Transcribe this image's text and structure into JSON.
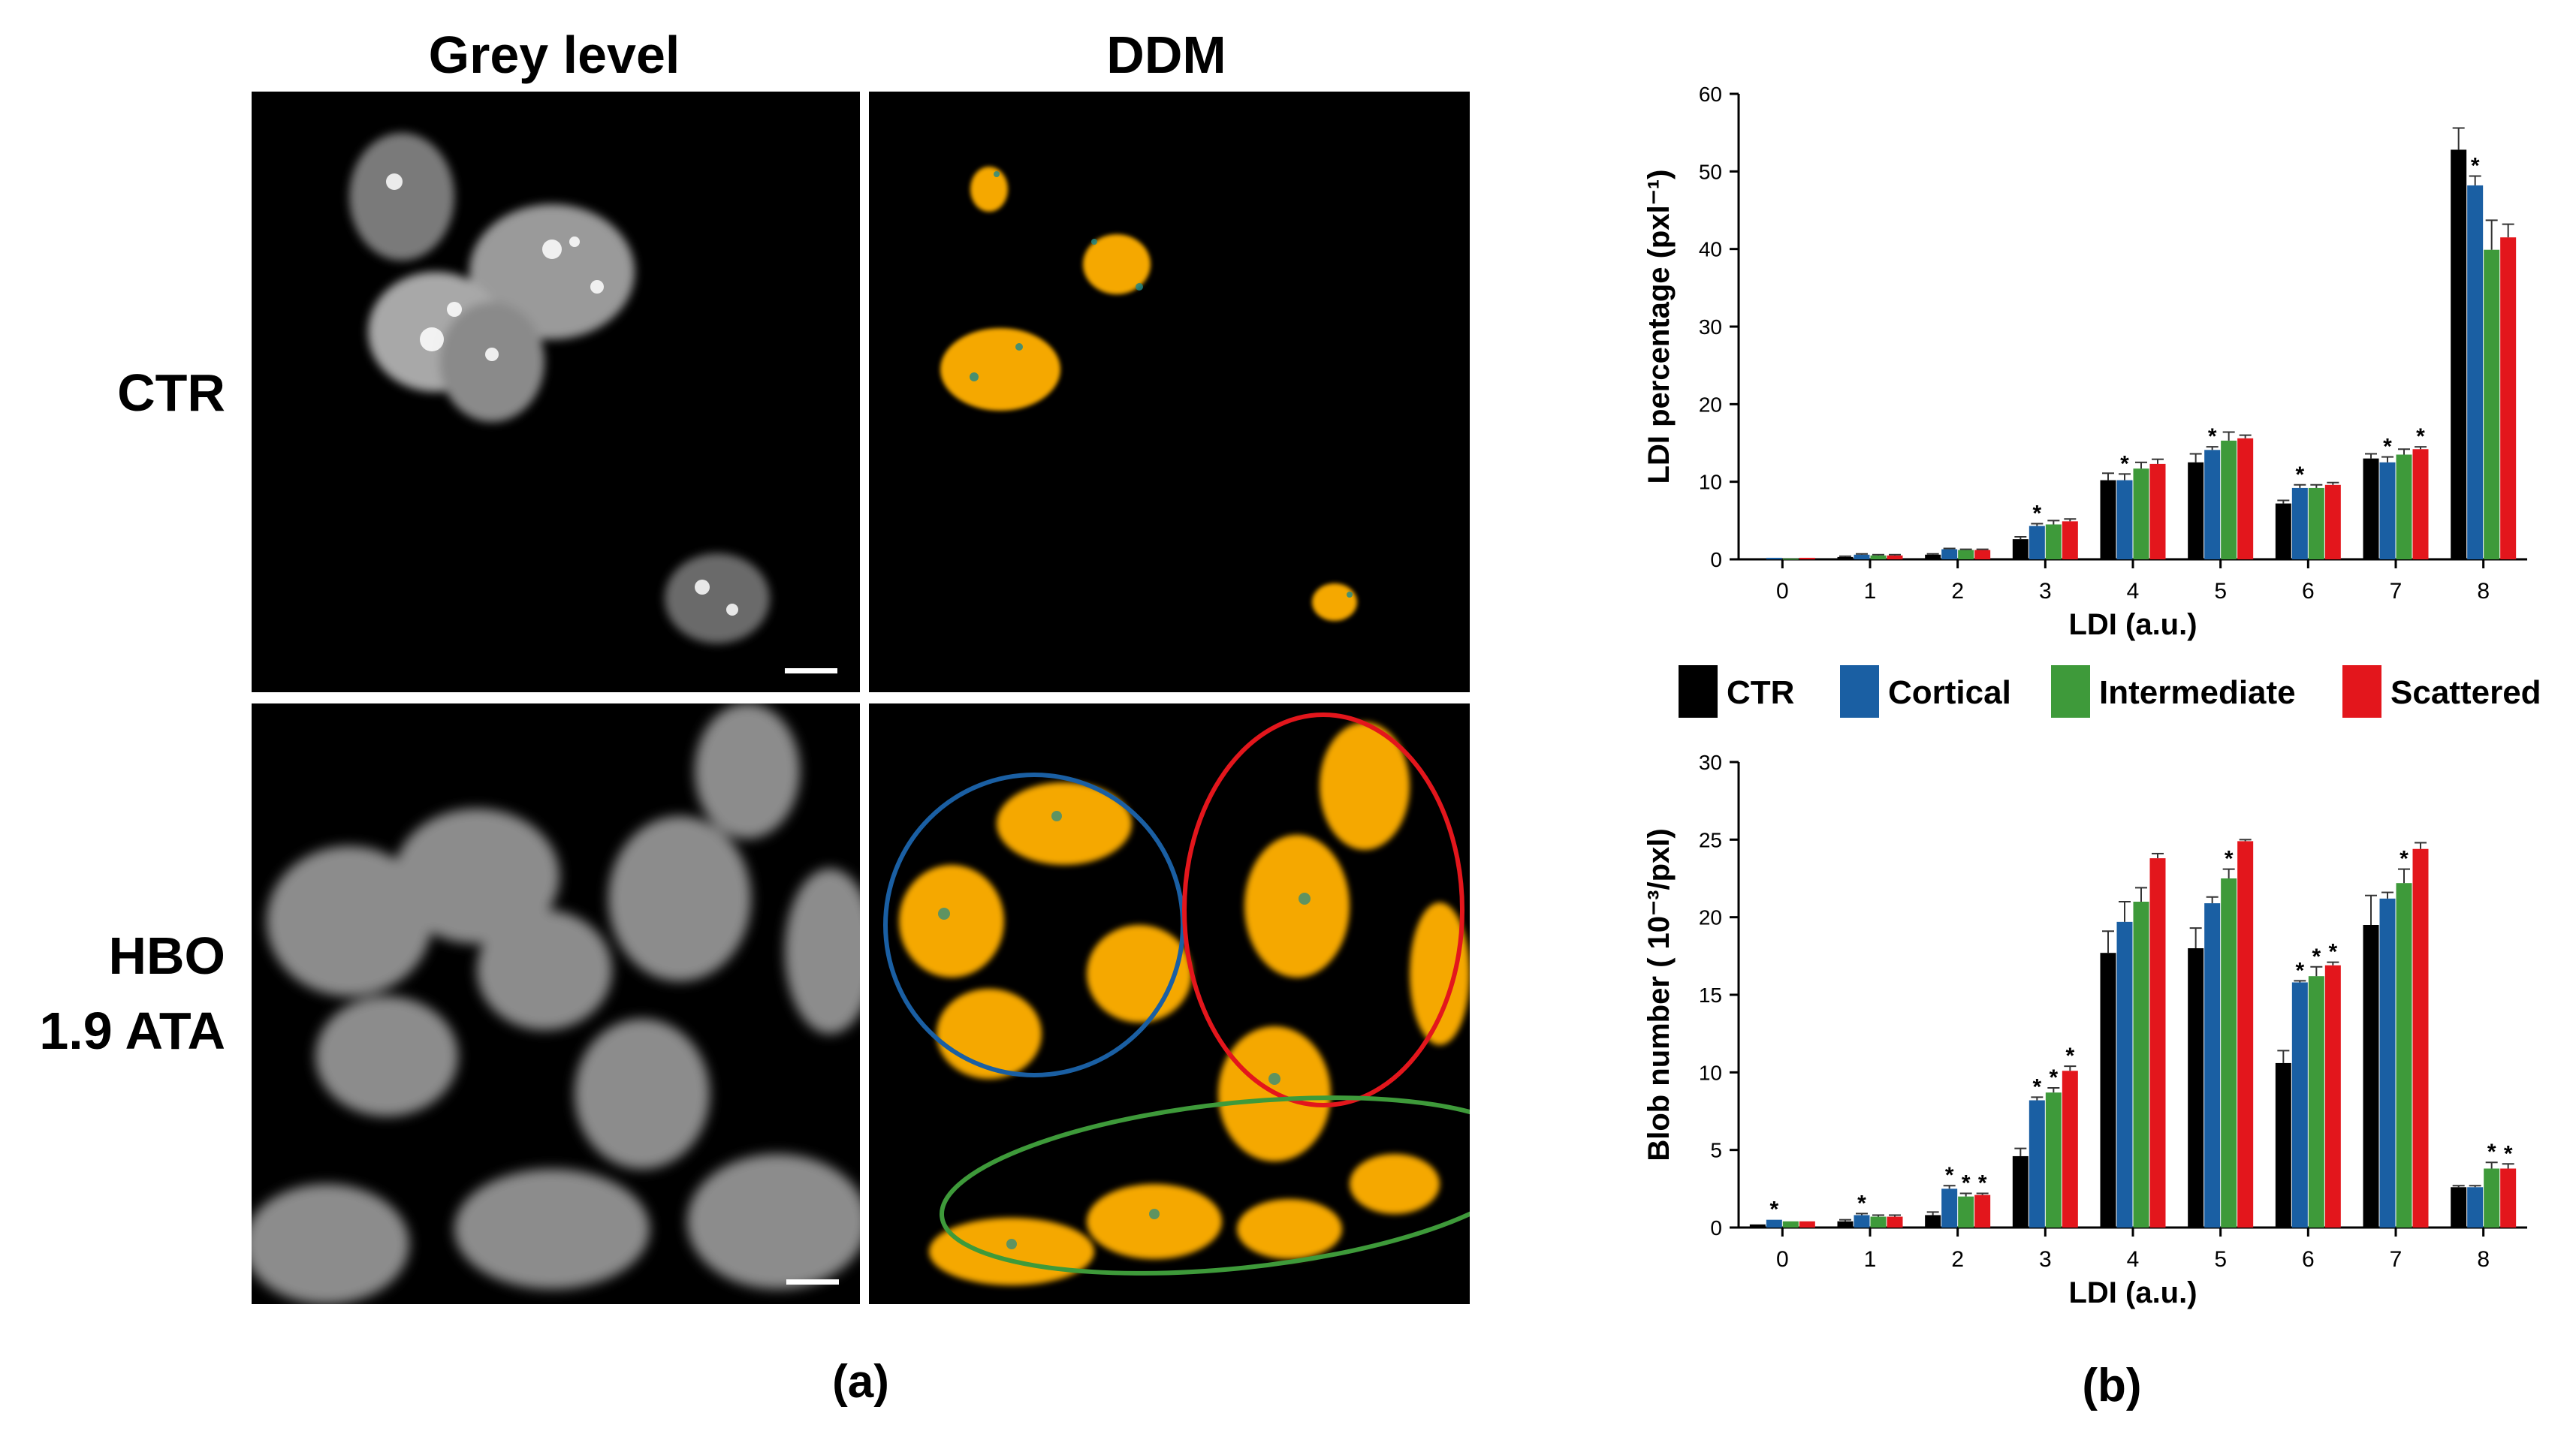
{
  "panel_a": {
    "column_titles": [
      "Grey level",
      "DDM"
    ],
    "row_labels": {
      "ctr": "CTR",
      "hbo_line1": "HBO",
      "hbo_line2": "1.9 ATA"
    },
    "caption": "(a)",
    "colors": {
      "ddm_mask": "#f5a800",
      "ddm_edge": "#1f8a8a",
      "circle_blue": "#1a5fa3",
      "circle_red": "#e3161c",
      "circle_green": "#3e9a3a"
    }
  },
  "panel_b": {
    "caption": "(b)",
    "legend": [
      {
        "label": "CTR",
        "color": "#000000"
      },
      {
        "label": "Cortical",
        "color": "#1a5fa3"
      },
      {
        "label": "Intermediate",
        "color": "#3e9a3a"
      },
      {
        "label": "Scattered",
        "color": "#e3161c"
      }
    ]
  },
  "chart_data": [
    {
      "type": "bar",
      "xlabel": "LDI (a.u.)",
      "ylabel": "LDI percentage (pxl⁻¹)",
      "ylim": [
        0,
        60
      ],
      "yticks": [
        0,
        10,
        20,
        30,
        40,
        50,
        60
      ],
      "categories": [
        "0",
        "1",
        "2",
        "3",
        "4",
        "5",
        "6",
        "7",
        "8"
      ],
      "series": [
        {
          "name": "CTR",
          "values": [
            0.1,
            0.3,
            0.6,
            2.6,
            10.2,
            12.5,
            7.2,
            13.0,
            52.8
          ],
          "errors": [
            0,
            0.1,
            0.1,
            0.3,
            0.9,
            1.1,
            0.4,
            0.6,
            2.8
          ]
        },
        {
          "name": "Cortical",
          "values": [
            0.2,
            0.6,
            1.3,
            4.3,
            10.2,
            14.1,
            9.2,
            12.5,
            48.2
          ],
          "errors": [
            0,
            0.1,
            0.1,
            0.3,
            0.8,
            0.4,
            0.4,
            0.7,
            1.2
          ]
        },
        {
          "name": "Intermediate",
          "values": [
            0.1,
            0.5,
            1.2,
            4.5,
            11.7,
            15.3,
            9.2,
            13.5,
            39.9
          ],
          "errors": [
            0,
            0.1,
            0.1,
            0.5,
            0.8,
            1.1,
            0.4,
            0.7,
            3.8
          ]
        },
        {
          "name": "Scattered",
          "values": [
            0.2,
            0.5,
            1.2,
            4.9,
            12.3,
            15.6,
            9.6,
            14.2,
            41.5
          ],
          "errors": [
            0,
            0.1,
            0.1,
            0.3,
            0.6,
            0.4,
            0.3,
            0.3,
            1.7
          ]
        }
      ],
      "significance": [
        {
          "category": "3",
          "series": "Cortical"
        },
        {
          "category": "4",
          "series": "Cortical"
        },
        {
          "category": "5",
          "series": "Cortical"
        },
        {
          "category": "6",
          "series": "Cortical"
        },
        {
          "category": "7",
          "series": "Cortical"
        },
        {
          "category": "7",
          "series": "Scattered"
        },
        {
          "category": "8",
          "series": "Cortical"
        }
      ],
      "significance_mark": "*"
    },
    {
      "type": "bar",
      "xlabel": "LDI (a.u.)",
      "ylabel": "Blob number ( 10⁻³/pxl)",
      "ylim": [
        0,
        30
      ],
      "yticks": [
        0,
        5,
        10,
        15,
        20,
        25,
        30
      ],
      "categories": [
        "0",
        "1",
        "2",
        "3",
        "4",
        "5",
        "6",
        "7",
        "8"
      ],
      "series": [
        {
          "name": "CTR",
          "values": [
            0.2,
            0.4,
            0.8,
            4.6,
            17.7,
            18.0,
            10.6,
            19.5,
            2.6
          ],
          "errors": [
            0,
            0.1,
            0.2,
            0.5,
            1.4,
            1.3,
            0.8,
            1.9,
            0.1
          ]
        },
        {
          "name": "Cortical",
          "values": [
            0.5,
            0.8,
            2.5,
            8.2,
            19.7,
            20.9,
            15.8,
            21.2,
            2.6
          ],
          "errors": [
            0,
            0.1,
            0.2,
            0.2,
            1.3,
            0.4,
            0.1,
            0.4,
            0.1
          ]
        },
        {
          "name": "Intermediate",
          "values": [
            0.4,
            0.7,
            2.0,
            8.7,
            21.0,
            22.5,
            16.2,
            22.2,
            3.8
          ],
          "errors": [
            0,
            0.1,
            0.2,
            0.3,
            0.9,
            0.6,
            0.6,
            0.9,
            0.4
          ]
        },
        {
          "name": "Scattered",
          "values": [
            0.4,
            0.7,
            2.1,
            10.1,
            23.8,
            24.9,
            16.9,
            24.4,
            3.8
          ],
          "errors": [
            0,
            0.1,
            0.1,
            0.3,
            0.3,
            0.1,
            0.2,
            0.4,
            0.3
          ]
        }
      ],
      "significance": [
        {
          "category": "0",
          "series": "Cortical"
        },
        {
          "category": "1",
          "series": "Cortical"
        },
        {
          "category": "2",
          "series": "Cortical"
        },
        {
          "category": "2",
          "series": "Intermediate"
        },
        {
          "category": "2",
          "series": "Scattered"
        },
        {
          "category": "3",
          "series": "Cortical"
        },
        {
          "category": "3",
          "series": "Intermediate"
        },
        {
          "category": "3",
          "series": "Scattered"
        },
        {
          "category": "5",
          "series": "Intermediate"
        },
        {
          "category": "6",
          "series": "Cortical"
        },
        {
          "category": "6",
          "series": "Intermediate"
        },
        {
          "category": "6",
          "series": "Scattered"
        },
        {
          "category": "7",
          "series": "Intermediate"
        },
        {
          "category": "8",
          "series": "Intermediate"
        },
        {
          "category": "8",
          "series": "Scattered"
        }
      ],
      "significance_mark": "*"
    }
  ]
}
